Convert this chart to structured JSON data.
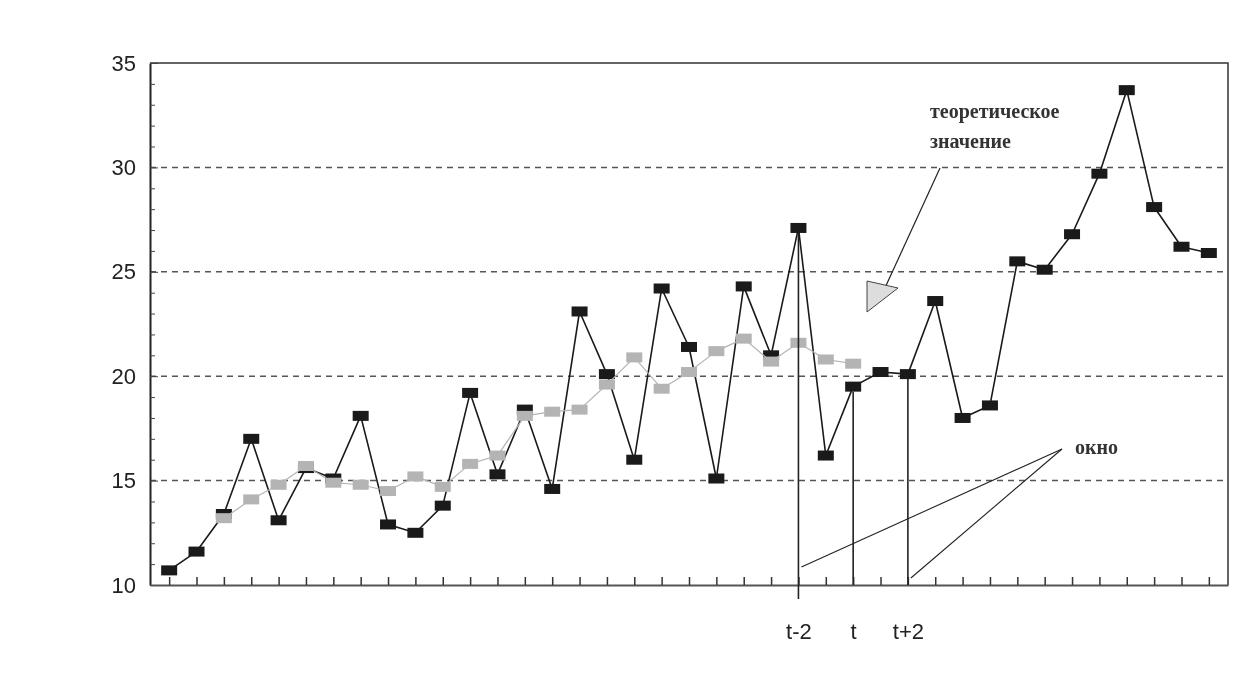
{
  "chart_data": {
    "type": "line",
    "categories": [
      null,
      null,
      null,
      null,
      null,
      null,
      null,
      null,
      null,
      null,
      null,
      null,
      null,
      null,
      null,
      null,
      null,
      null,
      null,
      null,
      null,
      null,
      null,
      "t-2",
      null,
      "t",
      null,
      "t+2",
      null,
      null,
      null,
      null,
      null,
      null,
      null,
      null,
      null,
      null,
      null
    ],
    "series": [
      {
        "color": "#1a1a1a",
        "values": [
          10.7,
          11.6,
          13.4,
          17.0,
          13.1,
          15.6,
          15.1,
          18.1,
          12.9,
          12.5,
          13.8,
          19.2,
          15.3,
          18.4,
          14.6,
          23.1,
          20.1,
          16.0,
          24.2,
          21.4,
          15.1,
          24.3,
          21.0,
          27.1,
          16.2,
          19.5,
          20.2,
          20.1,
          23.6,
          18.0,
          18.6,
          25.5,
          25.1,
          26.8,
          29.7,
          33.7,
          28.1,
          26.2,
          25.9
        ]
      },
      {
        "color": "#b4b4b4",
        "values": [
          null,
          null,
          13.2,
          14.1,
          14.8,
          15.7,
          14.9,
          14.8,
          14.5,
          15.2,
          14.7,
          15.8,
          16.2,
          18.1,
          18.3,
          18.4,
          19.6,
          20.9,
          19.4,
          20.2,
          21.2,
          21.8,
          20.7,
          21.6,
          20.8,
          20.6,
          null,
          null,
          null,
          null,
          null,
          null,
          null,
          null,
          null,
          null,
          null,
          null,
          null
        ]
      }
    ],
    "ylim": [
      10,
      35
    ],
    "yticks": [
      10,
      {
        "value": 11,
        "label": null
      },
      {
        "value": 12,
        "label": null
      },
      {
        "value": 13,
        "label": null
      },
      {
        "value": 14,
        "label": null
      },
      15,
      {
        "value": 16,
        "label": null
      },
      {
        "value": 17,
        "label": null
      },
      {
        "value": 18,
        "label": null
      },
      {
        "value": 19,
        "label": null
      },
      20,
      {
        "value": 21,
        "label": null
      },
      {
        "value": 22,
        "label": null
      },
      {
        "value": 23,
        "label": null
      },
      {
        "value": 24,
        "label": null
      },
      25,
      {
        "value": 26,
        "label": null
      },
      {
        "value": 27,
        "label": null
      },
      {
        "value": 28,
        "label": null
      },
      {
        "value": 29,
        "label": null
      },
      30,
      {
        "value": 31,
        "label": null
      },
      {
        "value": 32,
        "label": null
      },
      {
        "value": 33,
        "label": null
      },
      {
        "value": 34,
        "label": null
      },
      35
    ],
    "grid": "y",
    "marker": "square",
    "line_style": "solid",
    "annotations": [
      "теоретическое\nзначение",
      "окно"
    ]
  }
}
